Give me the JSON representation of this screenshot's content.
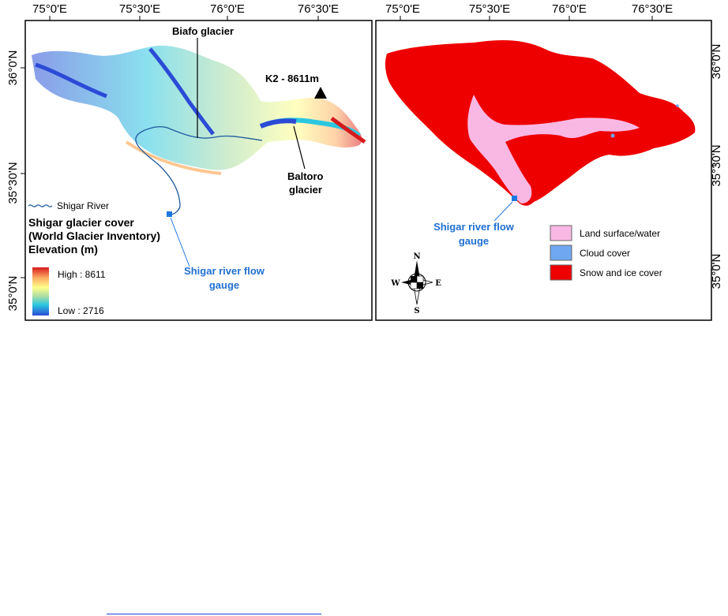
{
  "left_map": {
    "top_ticks": [
      "75°0'E",
      "75°30'E",
      "76°0'E",
      "76°30'E"
    ],
    "left_ticks": [
      "36°0'N",
      "35°30'N",
      "35°0'N"
    ],
    "labels": {
      "biafo": "Biafo  glacier",
      "k2": "K2 - 8611m",
      "baltoro_line1": "Baltoro",
      "baltoro_line2": "glacier",
      "gauge_line1": "Shigar river flow",
      "gauge_line2": "gauge"
    },
    "legend": {
      "river": "Shigar River",
      "title_line1": "Shigar glacier cover",
      "title_line2": "(World Glacier Inventory)",
      "title_line3": "Elevation (m)",
      "high": "High : 8611",
      "low": "Low : 2716"
    },
    "colors": {
      "high": "#d7191c",
      "mid_high": "#fdae61",
      "mid": "#ffff8c",
      "mid_low": "#abdda4",
      "low_mid": "#2bc7e0",
      "low": "#2b4bd6",
      "river": "#1f5aa0",
      "gauge": "#1f78e0"
    }
  },
  "right_map": {
    "top_ticks": [
      "75°0'E",
      "75°30'E",
      "76°0'E",
      "76°30'E"
    ],
    "right_ticks": [
      "36°0'N",
      "35°30'N",
      "35°0'N"
    ],
    "gauge_line1": "Shigar river flow",
    "gauge_line2": "gauge",
    "legend": [
      {
        "label": "Land surface/water",
        "color": "#f9b8e4"
      },
      {
        "label": "Cloud cover",
        "color": "#6fa8f0"
      },
      {
        "label": "Snow and ice cover",
        "color": "#ee0000"
      }
    ],
    "compass": {
      "n": "N",
      "s": "S",
      "e": "E",
      "w": "W"
    }
  }
}
